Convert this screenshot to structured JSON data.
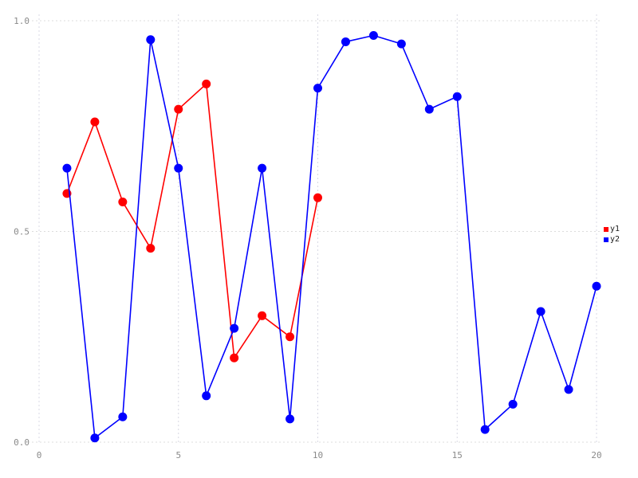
{
  "window": {
    "background_color": "#ffffff"
  },
  "chart_data": {
    "type": "line",
    "title": "",
    "xlabel": "",
    "ylabel": "",
    "xlim": [
      0,
      20
    ],
    "ylim": [
      0,
      1
    ],
    "x_ticks": [
      0,
      5,
      10,
      15,
      20
    ],
    "x_tick_labels": [
      "0",
      "5",
      "10",
      "15",
      "20"
    ],
    "y_ticks": [
      0,
      0.5,
      1
    ],
    "y_tick_labels": [
      "0.0",
      "0.5",
      "1.0"
    ],
    "grid": "dotted",
    "grid_color_horizontal": "#dcdcdc",
    "grid_color_vertical": "#d8d8e4",
    "axis_text_color": "#8a8a8a",
    "legend_position": "right-outside",
    "series": [
      {
        "name": "y1",
        "color": "#ff0000",
        "marker": "circle",
        "x": [
          1,
          2,
          3,
          4,
          5,
          6,
          7,
          8,
          9,
          10
        ],
        "values": [
          0.59,
          0.76,
          0.57,
          0.46,
          0.79,
          0.85,
          0.2,
          0.3,
          0.25,
          0.58
        ]
      },
      {
        "name": "y2",
        "color": "#0000ff",
        "marker": "circle",
        "x": [
          1,
          2,
          3,
          4,
          5,
          6,
          7,
          8,
          9,
          10,
          11,
          12,
          13,
          14,
          15,
          16,
          17,
          18,
          19,
          20
        ],
        "values": [
          0.65,
          0.01,
          0.06,
          0.955,
          0.65,
          0.11,
          0.27,
          0.65,
          0.055,
          0.84,
          0.95,
          0.965,
          0.945,
          0.79,
          0.82,
          0.03,
          0.09,
          0.31,
          0.125,
          0.37
        ]
      }
    ]
  },
  "legend": {
    "items": [
      {
        "label": "y1",
        "color": "#ff0000"
      },
      {
        "label": "y2",
        "color": "#0000ff"
      }
    ]
  }
}
